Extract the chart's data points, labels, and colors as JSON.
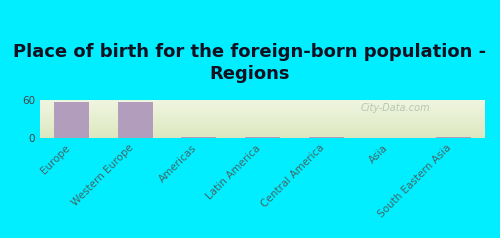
{
  "title": "Place of birth for the foreign-born population -\nRegions",
  "categories": [
    "Europe",
    "Western Europe",
    "Americas",
    "Latin America",
    "Central America",
    "Asia",
    "South Eastern Asia"
  ],
  "values": [
    57,
    57,
    1,
    1,
    1,
    0.5,
    1
  ],
  "bar_color": "#b39dbd",
  "bg_outer": "#00eeff",
  "plot_bg_top": "#f0f5e0",
  "plot_bg_bottom": "#dce8c0",
  "ylim": [
    0,
    60
  ],
  "yticks": [
    0,
    60
  ],
  "watermark": "City-Data.com",
  "title_fontsize": 13,
  "tick_fontsize": 7.5,
  "title_color": "#111122"
}
